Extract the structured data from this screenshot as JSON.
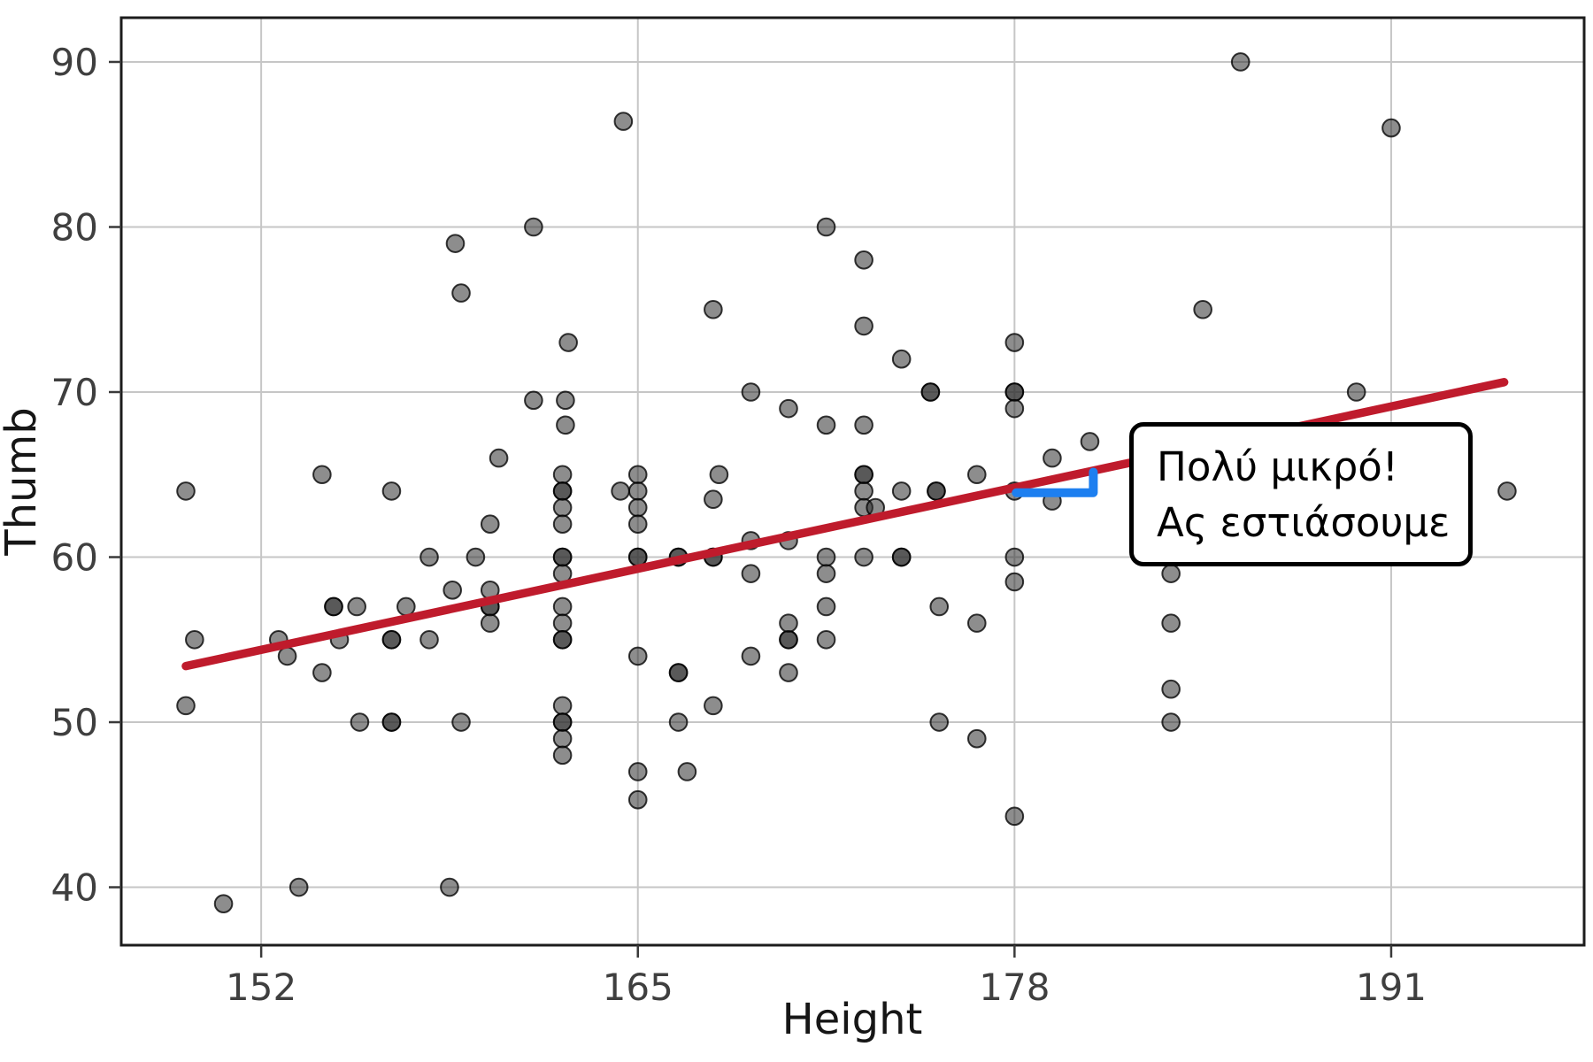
{
  "callout": {
    "line1": "Πολύ μικρό!",
    "line2": "Ας εστιάσουμε"
  },
  "colors": {
    "background": "#ffffff",
    "grid": "#c6c6c6",
    "plot_border": "#1c1c1c",
    "tick": "#3a3a3a",
    "point_fill": "#303030",
    "point_stroke": "#000000",
    "regression_red": "#bf1b2c",
    "bracket_blue": "#1d7ff0",
    "callout_border": "#000000",
    "label_gray": "#3f3f3f"
  },
  "chart_data": {
    "type": "scatter",
    "title": "",
    "xlabel": "Height",
    "ylabel": "Thumb",
    "x_ticks": [
      152,
      165,
      178,
      191
    ],
    "y_ticks": [
      40,
      50,
      60,
      70,
      80,
      90
    ],
    "xlim": [
      147.17,
      197.66
    ],
    "ylim": [
      36.49,
      92.68
    ],
    "grid": true,
    "legend": false,
    "points": [
      [
        149.4,
        64
      ],
      [
        149.7,
        55
      ],
      [
        149.4,
        51
      ],
      [
        150.7,
        39
      ],
      [
        152.6,
        55
      ],
      [
        152.9,
        54
      ],
      [
        153.3,
        40
      ],
      [
        154.1,
        65
      ],
      [
        154.5,
        57,
        2
      ],
      [
        155.3,
        57
      ],
      [
        154.7,
        55
      ],
      [
        154.1,
        53
      ],
      [
        155.4,
        50
      ],
      [
        156.5,
        64
      ],
      [
        157,
        57
      ],
      [
        156.5,
        55,
        2
      ],
      [
        157.8,
        55
      ],
      [
        156.5,
        50,
        2
      ],
      [
        158.5,
        40
      ],
      [
        157.8,
        60
      ],
      [
        159.4,
        60
      ],
      [
        158.6,
        58
      ],
      [
        159.9,
        58
      ],
      [
        159.9,
        57,
        2
      ],
      [
        159.9,
        56
      ],
      [
        159.9,
        62
      ],
      [
        158.9,
        50
      ],
      [
        158.7,
        79
      ],
      [
        158.9,
        76
      ],
      [
        160.2,
        66
      ],
      [
        161.4,
        69.5
      ],
      [
        162.5,
        69.5
      ],
      [
        162.5,
        68
      ],
      [
        161.4,
        80
      ],
      [
        162.6,
        73
      ],
      [
        162.4,
        65
      ],
      [
        162.4,
        64,
        2
      ],
      [
        162.4,
        63
      ],
      [
        162.4,
        62
      ],
      [
        162.4,
        60,
        2
      ],
      [
        162.4,
        59
      ],
      [
        162.4,
        57
      ],
      [
        162.4,
        56
      ],
      [
        162.4,
        55,
        2
      ],
      [
        162.4,
        51
      ],
      [
        162.4,
        50,
        2
      ],
      [
        162.4,
        49
      ],
      [
        162.4,
        48
      ],
      [
        164.5,
        86.4
      ],
      [
        165,
        65
      ],
      [
        165,
        64
      ],
      [
        164.4,
        64
      ],
      [
        165,
        63
      ],
      [
        165,
        62
      ],
      [
        165,
        60,
        2
      ],
      [
        165,
        54
      ],
      [
        165,
        47
      ],
      [
        165,
        45.3
      ],
      [
        166.7,
        47
      ],
      [
        166.4,
        60,
        2
      ],
      [
        167.6,
        60,
        2
      ],
      [
        166.4,
        53,
        2
      ],
      [
        166.4,
        50
      ],
      [
        167.6,
        51
      ],
      [
        167.6,
        75
      ],
      [
        167.6,
        63.5
      ],
      [
        167.8,
        65
      ],
      [
        168.9,
        54
      ],
      [
        168.9,
        59
      ],
      [
        168.9,
        61
      ],
      [
        168.9,
        70
      ],
      [
        170.2,
        53
      ],
      [
        170.2,
        55,
        2
      ],
      [
        170.2,
        56
      ],
      [
        171.5,
        55
      ],
      [
        170.2,
        61
      ],
      [
        170.2,
        69
      ],
      [
        171.5,
        68
      ],
      [
        171.5,
        80
      ],
      [
        171.5,
        60
      ],
      [
        171.5,
        59
      ],
      [
        171.5,
        57
      ],
      [
        172.8,
        78
      ],
      [
        172.8,
        74
      ],
      [
        172.8,
        68
      ],
      [
        172.8,
        65,
        2
      ],
      [
        172.8,
        64
      ],
      [
        172.8,
        63
      ],
      [
        173.2,
        63
      ],
      [
        172.8,
        60
      ],
      [
        174.1,
        72
      ],
      [
        174.1,
        60,
        2
      ],
      [
        174.1,
        64
      ],
      [
        175.3,
        64,
        2
      ],
      [
        175.1,
        70,
        2
      ],
      [
        175.4,
        57
      ],
      [
        175.4,
        50
      ],
      [
        176.7,
        65
      ],
      [
        176.7,
        56
      ],
      [
        176.7,
        49
      ],
      [
        178,
        73
      ],
      [
        178,
        70,
        2
      ],
      [
        178,
        69
      ],
      [
        178,
        64
      ],
      [
        178,
        60
      ],
      [
        178,
        58.5
      ],
      [
        178,
        44.3
      ],
      [
        179.3,
        66
      ],
      [
        179.3,
        63.4
      ],
      [
        180.6,
        67
      ],
      [
        183.4,
        59
      ],
      [
        183.4,
        56
      ],
      [
        183.4,
        52
      ],
      [
        183.4,
        50
      ],
      [
        184.5,
        75
      ],
      [
        185.8,
        90
      ],
      [
        189.8,
        70
      ],
      [
        191,
        86
      ],
      [
        195,
        64
      ]
    ],
    "regression_line": {
      "x1": 149.4,
      "y1": 53.4,
      "x2": 194.9,
      "y2": 70.6
    },
    "bracket": {
      "pts": [
        [
          178.06,
          63.9
        ],
        [
          180.72,
          63.9
        ],
        [
          180.72,
          65.15
        ]
      ]
    },
    "annotation": "Πολύ μικρό! Ας εστιάσουμε"
  }
}
